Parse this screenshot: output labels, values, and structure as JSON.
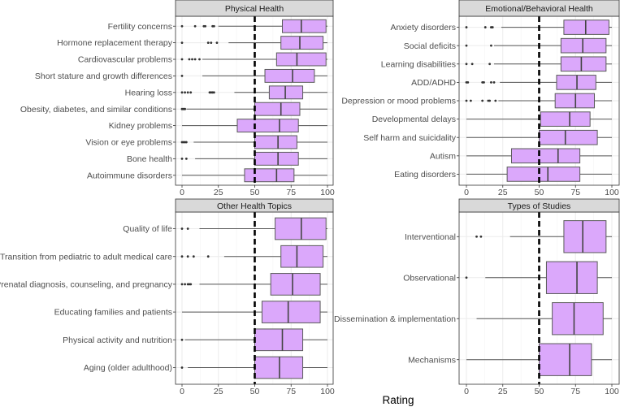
{
  "chart_data": {
    "type": "boxplot",
    "xlabel": "Rating",
    "xlim": [
      0,
      100
    ],
    "x_ticks": [
      "0",
      "25",
      "50",
      "75",
      "100"
    ],
    "reference_line": 50,
    "colors": {
      "box_fill": "#dba8fb",
      "box_stroke": "#5a5a5a",
      "ref_line": "#000000",
      "strip_fill": "#d9d9d9"
    },
    "panels": [
      {
        "title": "Physical Health",
        "categories": [
          {
            "label": "Fertility concerns",
            "low": 25,
            "q1": 69,
            "median": 82,
            "q3": 99,
            "high": 100,
            "outliers": [
              0,
              9,
              15,
              16,
              21,
              22
            ]
          },
          {
            "label": "Hormone replacement therapy",
            "low": 32,
            "q1": 68,
            "median": 81,
            "q3": 97,
            "high": 100,
            "outliers": [
              0,
              18,
              20,
              24
            ]
          },
          {
            "label": "Cardiovascular problems",
            "low": 14,
            "q1": 65,
            "median": 79,
            "q3": 99,
            "high": 100,
            "outliers": [
              0,
              5,
              7,
              9,
              12
            ]
          },
          {
            "label": "Short stature and growth differences",
            "low": 14,
            "q1": 57,
            "median": 76,
            "q3": 91,
            "high": 100,
            "outliers": [
              0
            ]
          },
          {
            "label": "Hearing loss",
            "low": 36,
            "q1": 60,
            "median": 71,
            "q3": 83,
            "high": 100,
            "outliers": [
              0,
              2,
              4,
              6,
              19,
              20,
              21,
              22
            ]
          },
          {
            "label": "Obesity, diabetes, and similar conditions",
            "low": 3,
            "q1": 50,
            "median": 68,
            "q3": 81,
            "high": 100,
            "outliers": [
              0,
              1,
              2
            ]
          },
          {
            "label": "Kidney problems",
            "low": 0,
            "q1": 38,
            "median": 67,
            "q3": 80,
            "high": 100,
            "outliers": []
          },
          {
            "label": "Vision or eye problems",
            "low": 8,
            "q1": 50,
            "median": 66,
            "q3": 79,
            "high": 100,
            "outliers": [
              0,
              1,
              2,
              3
            ]
          },
          {
            "label": "Bone health",
            "low": 9,
            "q1": 50,
            "median": 66,
            "q3": 80,
            "high": 100,
            "outliers": [
              0,
              3
            ]
          },
          {
            "label": "Autoimmune disorders",
            "low": 0,
            "q1": 43,
            "median": 65,
            "q3": 77,
            "high": 100,
            "outliers": []
          }
        ]
      },
      {
        "title": "Emotional/Behavioral Health",
        "categories": [
          {
            "label": "Anxiety disorders",
            "low": 24,
            "q1": 67,
            "median": 82,
            "q3": 98,
            "high": 100,
            "outliers": [
              0,
              13,
              17,
              18
            ]
          },
          {
            "label": "Social deficits",
            "low": 19,
            "q1": 65,
            "median": 80,
            "q3": 96,
            "high": 100,
            "outliers": [
              0,
              17
            ]
          },
          {
            "label": "Learning disabilities",
            "low": 19,
            "q1": 65,
            "median": 79,
            "q3": 96,
            "high": 100,
            "outliers": [
              0,
              4,
              16
            ]
          },
          {
            "label": "ADD/ADHD",
            "low": 23,
            "q1": 62,
            "median": 76,
            "q3": 89,
            "high": 100,
            "outliers": [
              0,
              1,
              11,
              12,
              17,
              19
            ]
          },
          {
            "label": "Depression or mood problems",
            "low": 22,
            "q1": 61,
            "median": 75,
            "q3": 88,
            "high": 100,
            "outliers": [
              0,
              3,
              11,
              15,
              16,
              20
            ]
          },
          {
            "label": "Developmental delays",
            "low": 0,
            "q1": 51,
            "median": 71,
            "q3": 85,
            "high": 100,
            "outliers": []
          },
          {
            "label": "Self harm and suicidality",
            "low": 0,
            "q1": 50,
            "median": 68,
            "q3": 90,
            "high": 100,
            "outliers": []
          },
          {
            "label": "Autism",
            "low": 0,
            "q1": 31,
            "median": 63,
            "q3": 78,
            "high": 100,
            "outliers": []
          },
          {
            "label": "Eating disorders",
            "low": 0,
            "q1": 28,
            "median": 56,
            "q3": 78,
            "high": 100,
            "outliers": []
          }
        ]
      },
      {
        "title": "Other Health Topics",
        "categories": [
          {
            "label": "Quality of life",
            "low": 12,
            "q1": 64,
            "median": 82,
            "q3": 99,
            "high": 100,
            "outliers": [
              0,
              4
            ]
          },
          {
            "label": "Transition from pediatric to adult medical care",
            "low": 29,
            "q1": 68,
            "median": 79,
            "q3": 97,
            "high": 100,
            "outliers": [
              0,
              4,
              8,
              18
            ]
          },
          {
            "label": "Prenatal diagnosis, counseling, and pregnancy",
            "low": 12,
            "q1": 61,
            "median": 76,
            "q3": 95,
            "high": 100,
            "outliers": [
              0,
              2,
              4,
              5,
              6
            ]
          },
          {
            "label": "Educating families and patients",
            "low": 0,
            "q1": 55,
            "median": 73,
            "q3": 95,
            "high": 100,
            "outliers": []
          },
          {
            "label": "Physical activity and nutrition",
            "low": 2,
            "q1": 50,
            "median": 69,
            "q3": 83,
            "high": 100,
            "outliers": [
              0
            ]
          },
          {
            "label": "Aging (older adulthood)",
            "low": 4,
            "q1": 50,
            "median": 67,
            "q3": 83,
            "high": 100,
            "outliers": [
              0
            ]
          }
        ]
      },
      {
        "title": "Types of Studies",
        "categories": [
          {
            "label": "Interventional",
            "low": 30,
            "q1": 67,
            "median": 80,
            "q3": 96,
            "high": 100,
            "outliers": [
              7,
              10
            ]
          },
          {
            "label": "Observational",
            "low": 13,
            "q1": 55,
            "median": 76,
            "q3": 90,
            "high": 100,
            "outliers": [
              0
            ]
          },
          {
            "label": "Dissemination & implementation",
            "low": 7,
            "q1": 59,
            "median": 74,
            "q3": 94,
            "high": 100,
            "outliers": []
          },
          {
            "label": "Mechanisms",
            "low": 0,
            "q1": 50,
            "median": 71,
            "q3": 86,
            "high": 100,
            "outliers": []
          }
        ]
      }
    ]
  }
}
